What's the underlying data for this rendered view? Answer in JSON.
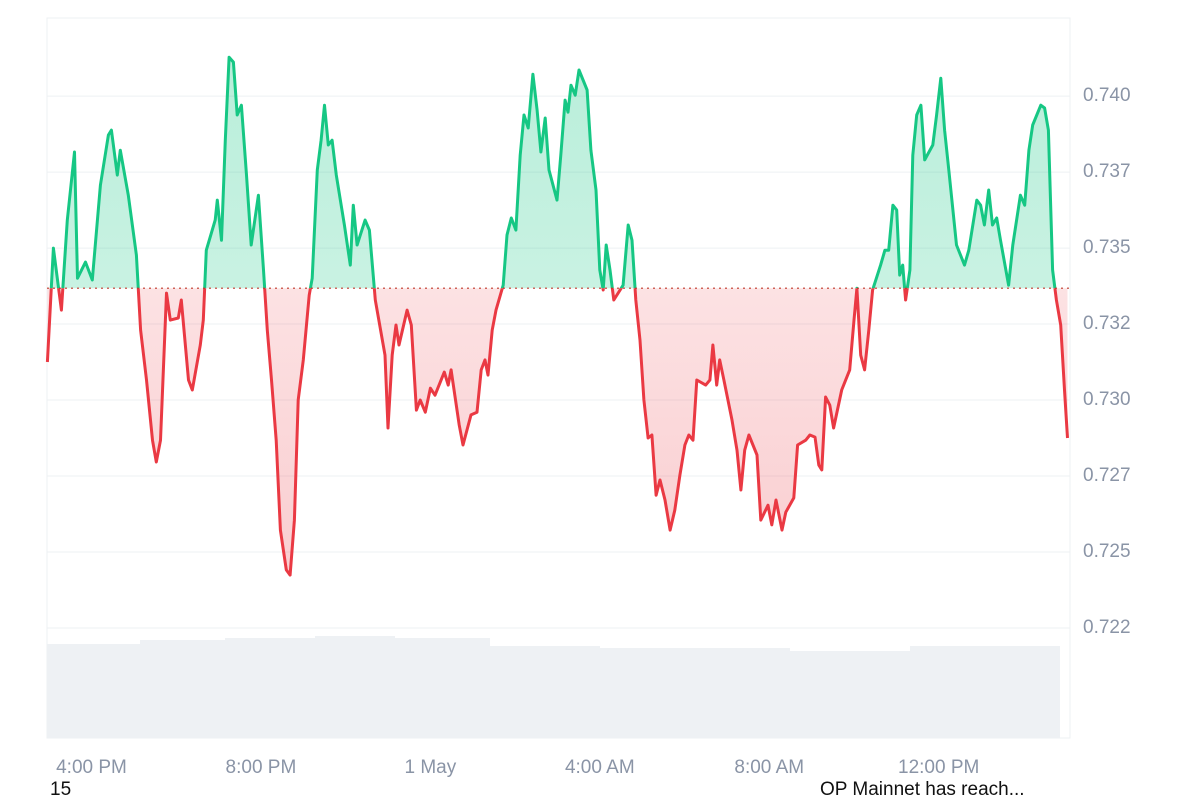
{
  "chart_data": {
    "type": "baseline-line",
    "x": [
      14.96,
      15.1,
      15.29,
      15.43,
      15.6,
      15.67,
      15.86,
      16.02,
      16.21,
      16.4,
      16.47,
      16.61,
      16.68,
      16.87,
      17.06,
      17.16,
      17.3,
      17.44,
      17.53,
      17.63,
      17.77,
      17.86,
      18.05,
      18.12,
      18.29,
      18.38,
      18.57,
      18.64,
      18.71,
      18.92,
      18.97,
      19.07,
      19.16,
      19.25,
      19.35,
      19.44,
      19.54,
      19.66,
      19.77,
      19.94,
      20.06,
      20.15,
      20.25,
      20.36,
      20.46,
      20.6,
      20.69,
      20.79,
      20.88,
      21.0,
      21.14,
      21.21,
      21.33,
      21.42,
      21.5,
      21.59,
      21.68,
      21.78,
      21.97,
      22.11,
      22.18,
      22.27,
      22.46,
      22.56,
      22.7,
      22.93,
      23.0,
      23.1,
      23.19,
      23.26,
      23.45,
      23.55,
      23.67,
      23.76,
      23.88,
      24.0,
      24.11,
      24.33,
      24.42,
      24.49,
      24.68,
      24.77,
      24.96,
      25.1,
      25.2,
      25.29,
      25.36,
      25.46,
      25.55,
      25.72,
      25.81,
      25.91,
      26.02,
      26.12,
      26.21,
      26.31,
      26.42,
      26.52,
      26.61,
      26.71,
      26.8,
      26.99,
      27.08,
      27.18,
      27.25,
      27.32,
      27.42,
      27.51,
      27.7,
      27.79,
      27.91,
      28.0,
      28.08,
      28.15,
      28.24,
      28.33,
      28.55,
      28.67,
      28.76,
      28.85,
      28.95,
      29.04,
      29.14,
      29.23,
      29.33,
      29.42,
      29.54,
      29.66,
      29.77,
      29.89,
      30.01,
      30.1,
      30.2,
      30.29,
      30.5,
      30.6,
      30.67,
      30.76,
      30.83,
      30.93,
      31.12,
      31.24,
      31.33,
      31.42,
      31.52,
      31.71,
      31.8,
      31.97,
      32.06,
      32.16,
      32.3,
      32.39,
      32.58,
      32.67,
      32.86,
      32.96,
      33.08,
      33.17,
      33.24,
      33.33,
      33.43,
      33.52,
      33.71,
      33.9,
      34.0,
      34.07,
      34.16,
      34.25,
      34.35,
      34.44,
      34.63,
      34.73,
      34.82,
      34.92,
      35.01,
      35.08,
      35.15,
      35.22,
      35.32,
      35.39,
      35.48,
      35.58,
      35.67,
      35.86,
      35.95,
      36.05,
      36.14,
      36.24,
      36.42,
      36.61,
      36.71,
      36.9,
      36.99,
      37.08,
      37.18,
      37.27,
      37.37,
      37.46,
      37.65,
      37.75,
      37.93,
      38.03,
      38.13,
      38.22,
      38.41,
      38.5,
      38.59,
      38.69,
      38.78,
      38.88,
      38.97,
      39.04
    ],
    "series": [
      {
        "color_up": "#16c784",
        "color_down": "#ea3943",
        "values": [
          0.73125,
          0.735,
          0.73296,
          0.73592,
          0.73816,
          0.73401,
          0.73454,
          0.73395,
          0.73707,
          0.73872,
          0.73888,
          0.7374,
          0.73822,
          0.73674,
          0.73477,
          0.7323,
          0.73066,
          0.72868,
          0.72796,
          0.72868,
          0.73352,
          0.73263,
          0.7327,
          0.73329,
          0.73066,
          0.73033,
          0.73181,
          0.73263,
          0.73493,
          0.73592,
          0.73658,
          0.73526,
          0.73855,
          0.74128,
          0.74112,
          0.73938,
          0.7397,
          0.7374,
          0.7351,
          0.73674,
          0.73428,
          0.7323,
          0.73066,
          0.72868,
          0.72572,
          0.72441,
          0.72424,
          0.72605,
          0.73,
          0.73132,
          0.73345,
          0.73401,
          0.73757,
          0.73855,
          0.7397,
          0.73839,
          0.73855,
          0.7374,
          0.73576,
          0.73444,
          0.73641,
          0.7351,
          0.73592,
          0.73559,
          0.73329,
          0.73148,
          0.72908,
          0.73148,
          0.73247,
          0.73181,
          0.73296,
          0.73247,
          0.72967,
          0.73,
          0.7296,
          0.73039,
          0.73016,
          0.73092,
          0.73049,
          0.73099,
          0.72918,
          0.72852,
          0.72951,
          0.7296,
          0.73099,
          0.73132,
          0.73082,
          0.7323,
          0.73296,
          0.73378,
          0.73543,
          0.73599,
          0.73559,
          0.73806,
          0.73938,
          0.73895,
          0.74072,
          0.73954,
          0.73816,
          0.73928,
          0.73757,
          0.73658,
          0.73806,
          0.73987,
          0.73947,
          0.74036,
          0.74003,
          0.74086,
          0.7402,
          0.73822,
          0.73691,
          0.73428,
          0.73362,
          0.7351,
          0.73428,
          0.73329,
          0.73378,
          0.73576,
          0.73526,
          0.73329,
          0.73197,
          0.73,
          0.72875,
          0.72885,
          0.72687,
          0.72737,
          0.72671,
          0.72572,
          0.72638,
          0.72753,
          0.72852,
          0.72885,
          0.72868,
          0.73066,
          0.73049,
          0.73066,
          0.73181,
          0.73049,
          0.73132,
          0.73066,
          0.72934,
          0.72835,
          0.72704,
          0.72835,
          0.72885,
          0.72819,
          0.72605,
          0.72654,
          0.72589,
          0.72671,
          0.72572,
          0.72631,
          0.72678,
          0.72852,
          0.72868,
          0.72885,
          0.72878,
          0.72786,
          0.7277,
          0.7301,
          0.72983,
          0.72908,
          0.73033,
          0.73099,
          0.73263,
          0.73368,
          0.73148,
          0.73099,
          0.7323,
          0.73362,
          0.73444,
          0.73493,
          0.73493,
          0.73641,
          0.73625,
          0.73411,
          0.73444,
          0.73329,
          0.73428,
          0.73806,
          0.73938,
          0.7397,
          0.7379,
          0.73839,
          0.73938,
          0.74059,
          0.73888,
          0.73757,
          0.7351,
          0.73444,
          0.73493,
          0.73658,
          0.73641,
          0.73576,
          0.73691,
          0.73576,
          0.73599,
          0.73526,
          0.73378,
          0.7351,
          0.73674,
          0.73641,
          0.73822,
          0.73905,
          0.7397,
          0.73961,
          0.73888,
          0.73428,
          0.73329,
          0.73247,
          0.73033,
          0.72875
        ]
      }
    ],
    "baseline": 0.73368,
    "xlim": [
      14.95,
      39.1
    ],
    "ylim": [
      0.71888,
      0.74257
    ],
    "xticks": [
      {
        "value": 16,
        "label": "4:00 PM"
      },
      {
        "value": 20,
        "label": "8:00 PM"
      },
      {
        "value": 24,
        "label": "1 May"
      },
      {
        "value": 28,
        "label": "4:00 AM"
      },
      {
        "value": 32,
        "label": "8:00 AM"
      },
      {
        "value": 36,
        "label": "12:00 PM"
      }
    ],
    "yticks": [
      {
        "value": 0.7225,
        "label": "0.722"
      },
      {
        "value": 0.725,
        "label": "0.725"
      },
      {
        "value": 0.7275,
        "label": "0.727"
      },
      {
        "value": 0.73,
        "label": "0.730"
      },
      {
        "value": 0.7325,
        "label": "0.732"
      },
      {
        "value": 0.735,
        "label": "0.735"
      },
      {
        "value": 0.7375,
        "label": "0.737"
      },
      {
        "value": 0.74,
        "label": "0.740"
      }
    ],
    "grid": true,
    "footer_left": "15",
    "footer_right": "OP Mainnet has reach..."
  }
}
